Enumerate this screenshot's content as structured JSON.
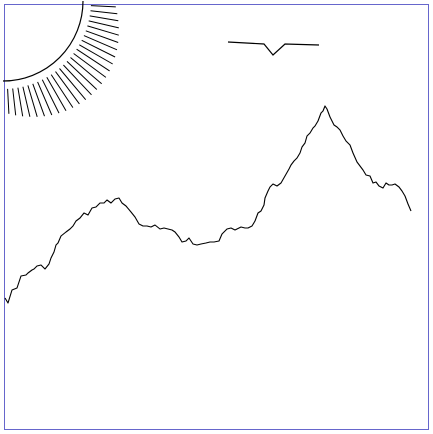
{
  "scene": {
    "elements": [
      "sun",
      "sun-rays",
      "bird",
      "mountain-ridge"
    ]
  },
  "colors": {
    "background": "#ffffff",
    "frame": "#6666cc",
    "stroke": "#000000"
  },
  "icons": {
    "sun": "sun-icon",
    "bird": "bird-icon"
  }
}
